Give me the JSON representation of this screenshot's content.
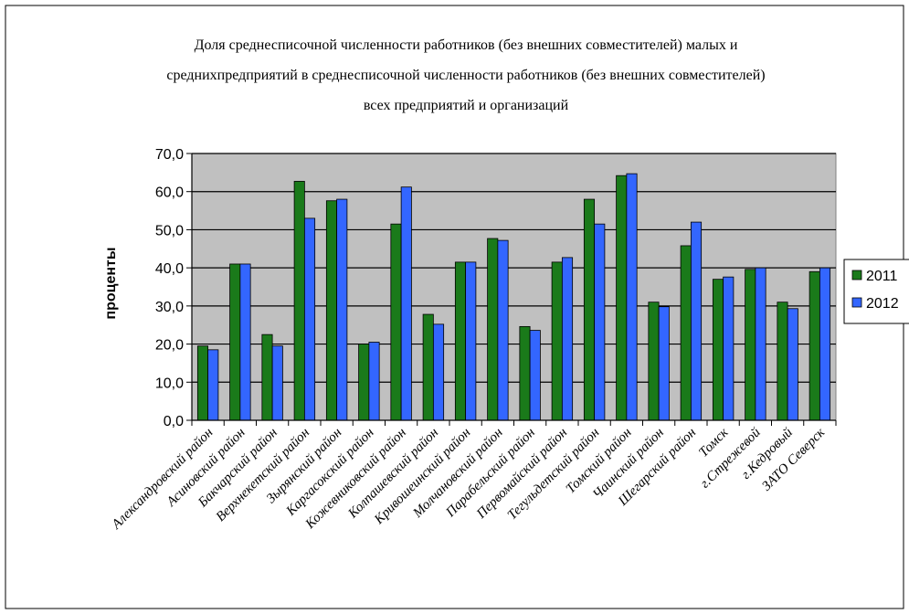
{
  "chart_data": {
    "type": "bar",
    "title_lines": [
      "Доля среднесписочной численности работников (без внешних совместителей) малых и",
      "среднихпредприятий в среднесписочной численности работников (без внешних совместителей)",
      "всех предприятий и организаций"
    ],
    "ylabel": "проценты",
    "xlabel": "",
    "ylim": [
      0,
      70
    ],
    "yticks": [
      "0,0",
      "10,0",
      "20,0",
      "30,0",
      "40,0",
      "50,0",
      "60,0",
      "70,0"
    ],
    "grid": true,
    "legend_position": "right",
    "categories": [
      "Александровский район",
      "Асиновский район",
      "Бакчарский район",
      "Верхнекетский район",
      "Зырянский район",
      "Каргасокский район",
      "Кожевниковский район",
      "Колпашевский район",
      "Кривошеинский район",
      "Молчановский район",
      "Парабельский район",
      "Первомайский район",
      "Тегульдетский район",
      "Томский район",
      "Чаинский район",
      "Шегарский район",
      "Томск",
      "г.Стрежевой",
      "г.Кедровый",
      "ЗАТО Северск"
    ],
    "series": [
      {
        "name": "2011",
        "color": "#1a7a1a",
        "values": [
          19.5,
          41.0,
          22.5,
          62.7,
          57.6,
          20.0,
          51.5,
          27.8,
          41.5,
          47.7,
          24.6,
          41.5,
          58.0,
          64.2,
          31.0,
          45.8,
          37.0,
          39.6,
          31.0,
          39.0
        ]
      },
      {
        "name": "2012",
        "color": "#3366ff",
        "values": [
          18.5,
          41.0,
          19.5,
          53.0,
          58.0,
          20.5,
          61.2,
          25.2,
          41.5,
          47.2,
          23.6,
          42.7,
          51.5,
          64.7,
          29.8,
          52.0,
          37.6,
          40.0,
          29.3,
          40.0
        ]
      }
    ]
  }
}
